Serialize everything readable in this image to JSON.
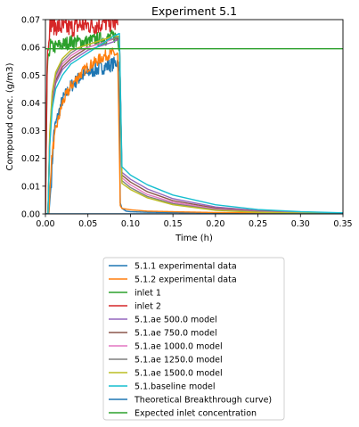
{
  "chart_data": {
    "type": "line",
    "title": "Experiment 5.1",
    "xlabel": "Time (h)",
    "ylabel": "Compound conc. (g/m3)",
    "xlim": [
      0,
      0.35
    ],
    "ylim": [
      0,
      0.07
    ],
    "xticks": [
      "0.00",
      "0.05",
      "0.10",
      "0.15",
      "0.20",
      "0.25",
      "0.30",
      "0.35"
    ],
    "yticks": [
      "0.00",
      "0.01",
      "0.02",
      "0.03",
      "0.04",
      "0.05",
      "0.06",
      "0.07"
    ],
    "grid": false,
    "legend_position": "below",
    "series": [
      {
        "name": "5.1.1 experimental data",
        "color": "#1f77b4",
        "noise": 0.0025,
        "x": [
          0.0,
          0.004,
          0.007,
          0.01,
          0.02,
          0.03,
          0.04,
          0.05,
          0.06,
          0.07,
          0.08,
          0.085,
          0.087,
          0.088,
          0.09,
          0.095,
          0.1,
          0.12,
          0.15,
          0.2,
          0.25,
          0.3,
          0.35
        ],
        "y": [
          0.0,
          0.0,
          0.012,
          0.03,
          0.041,
          0.046,
          0.049,
          0.051,
          0.052,
          0.053,
          0.054,
          0.055,
          0.05,
          0.004,
          0.002,
          0.001,
          0.0008,
          0.0006,
          0.0005,
          0.0004,
          0.0003,
          0.0003,
          0.0003
        ]
      },
      {
        "name": "5.1.2 experimental data",
        "color": "#ff7f0e",
        "noise": 0.002,
        "x": [
          0.0,
          0.004,
          0.006,
          0.008,
          0.012,
          0.02,
          0.03,
          0.04,
          0.05,
          0.06,
          0.07,
          0.08,
          0.085,
          0.088,
          0.09,
          0.1,
          0.12,
          0.15,
          0.2,
          0.25,
          0.3,
          0.35
        ],
        "y": [
          0.0,
          0.0,
          0.014,
          0.022,
          0.03,
          0.04,
          0.046,
          0.05,
          0.053,
          0.055,
          0.057,
          0.058,
          0.057,
          0.003,
          0.002,
          0.0015,
          0.001,
          0.0008,
          0.0005,
          0.0004,
          0.0003,
          0.0003
        ]
      },
      {
        "name": "inlet 1",
        "color": "#2ca02c",
        "noise": 0.0025,
        "x": [
          0.0,
          0.002,
          0.004,
          0.006,
          0.008,
          0.01,
          0.02,
          0.03,
          0.04,
          0.05,
          0.06,
          0.07,
          0.08,
          0.085,
          0.086,
          0.087
        ],
        "y": [
          0.0,
          0.05,
          0.058,
          0.061,
          0.06,
          0.06,
          0.061,
          0.062,
          0.062,
          0.062,
          0.063,
          0.063,
          0.064,
          0.064,
          0.062,
          0.06
        ]
      },
      {
        "name": "inlet 2",
        "color": "#d62728",
        "noise": 0.0035,
        "x": [
          0.0,
          0.002,
          0.004,
          0.006,
          0.01,
          0.02,
          0.03,
          0.04,
          0.05,
          0.06,
          0.07,
          0.08,
          0.085
        ],
        "y": [
          0.0,
          0.055,
          0.065,
          0.069,
          0.068,
          0.067,
          0.067,
          0.068,
          0.068,
          0.068,
          0.069,
          0.069,
          0.068
        ]
      },
      {
        "name": "5.1.ae 500.0 model",
        "color": "#9467bd",
        "noise": 0,
        "x": [
          0.0,
          0.003,
          0.005,
          0.008,
          0.012,
          0.02,
          0.03,
          0.04,
          0.05,
          0.06,
          0.07,
          0.08,
          0.087,
          0.09,
          0.1,
          0.12,
          0.15,
          0.2,
          0.25,
          0.3,
          0.35
        ],
        "y": [
          0.0,
          0.0,
          0.025,
          0.04,
          0.047,
          0.052,
          0.055,
          0.057,
          0.059,
          0.06,
          0.061,
          0.062,
          0.063,
          0.015,
          0.0125,
          0.009,
          0.0055,
          0.0025,
          0.0012,
          0.0006,
          0.0003
        ]
      },
      {
        "name": "5.1.ae 750.0 model",
        "color": "#8c564b",
        "noise": 0,
        "x": [
          0.0,
          0.003,
          0.005,
          0.008,
          0.012,
          0.02,
          0.03,
          0.04,
          0.05,
          0.06,
          0.07,
          0.08,
          0.087,
          0.09,
          0.1,
          0.12,
          0.15,
          0.2,
          0.25,
          0.3,
          0.35
        ],
        "y": [
          0.0,
          0.0,
          0.026,
          0.041,
          0.048,
          0.053,
          0.056,
          0.058,
          0.06,
          0.061,
          0.062,
          0.063,
          0.063,
          0.014,
          0.0115,
          0.008,
          0.0048,
          0.0021,
          0.001,
          0.0005,
          0.0002
        ]
      },
      {
        "name": "5.1.ae 1000.0 model",
        "color": "#e377c2",
        "noise": 0,
        "x": [
          0.0,
          0.003,
          0.005,
          0.008,
          0.012,
          0.02,
          0.03,
          0.04,
          0.05,
          0.06,
          0.07,
          0.08,
          0.087,
          0.09,
          0.1,
          0.12,
          0.15,
          0.2,
          0.25,
          0.3,
          0.35
        ],
        "y": [
          0.0,
          0.0,
          0.027,
          0.042,
          0.049,
          0.054,
          0.057,
          0.059,
          0.06,
          0.061,
          0.062,
          0.063,
          0.064,
          0.013,
          0.0105,
          0.007,
          0.0042,
          0.0018,
          0.0008,
          0.0004,
          0.0002
        ]
      },
      {
        "name": "5.1.ae 1250.0 model",
        "color": "#7f7f7f",
        "noise": 0,
        "x": [
          0.0,
          0.003,
          0.005,
          0.008,
          0.012,
          0.02,
          0.03,
          0.04,
          0.05,
          0.06,
          0.07,
          0.08,
          0.087,
          0.09,
          0.1,
          0.12,
          0.15,
          0.2,
          0.25,
          0.3,
          0.35
        ],
        "y": [
          0.0,
          0.0,
          0.028,
          0.043,
          0.05,
          0.055,
          0.058,
          0.06,
          0.061,
          0.062,
          0.063,
          0.063,
          0.064,
          0.012,
          0.0095,
          0.0063,
          0.0037,
          0.0015,
          0.0007,
          0.0003,
          0.0001
        ]
      },
      {
        "name": "5.1.ae 1500.0 model",
        "color": "#bcbd22",
        "noise": 0,
        "x": [
          0.0,
          0.003,
          0.005,
          0.008,
          0.012,
          0.02,
          0.03,
          0.04,
          0.05,
          0.06,
          0.07,
          0.08,
          0.087,
          0.09,
          0.1,
          0.12,
          0.15,
          0.2,
          0.25,
          0.3,
          0.35
        ],
        "y": [
          0.0,
          0.0,
          0.029,
          0.044,
          0.051,
          0.056,
          0.059,
          0.06,
          0.061,
          0.062,
          0.063,
          0.064,
          0.064,
          0.011,
          0.0088,
          0.0058,
          0.0033,
          0.0013,
          0.0006,
          0.0003,
          0.0001
        ]
      },
      {
        "name": "5.1.baseline model",
        "color": "#17becf",
        "noise": 0,
        "x": [
          0.0,
          0.003,
          0.005,
          0.008,
          0.012,
          0.02,
          0.03,
          0.04,
          0.05,
          0.06,
          0.07,
          0.08,
          0.087,
          0.09,
          0.1,
          0.12,
          0.15,
          0.2,
          0.25,
          0.3,
          0.35
        ],
        "y": [
          0.0,
          0.0,
          0.024,
          0.038,
          0.045,
          0.05,
          0.054,
          0.056,
          0.058,
          0.06,
          0.062,
          0.064,
          0.065,
          0.017,
          0.014,
          0.0105,
          0.0068,
          0.0033,
          0.0016,
          0.0008,
          0.0004
        ]
      },
      {
        "name": "Theoretical Breakthrough curve)",
        "color": "#1f77b4",
        "noise": 0,
        "x": [
          0.0,
          0.35
        ],
        "y": [
          0.0,
          0.0
        ]
      },
      {
        "name": "Expected inlet concentration",
        "color": "#2ca02c",
        "noise": 0,
        "x": [
          0.0,
          0.35
        ],
        "y": [
          0.0595,
          0.0595
        ]
      }
    ]
  }
}
